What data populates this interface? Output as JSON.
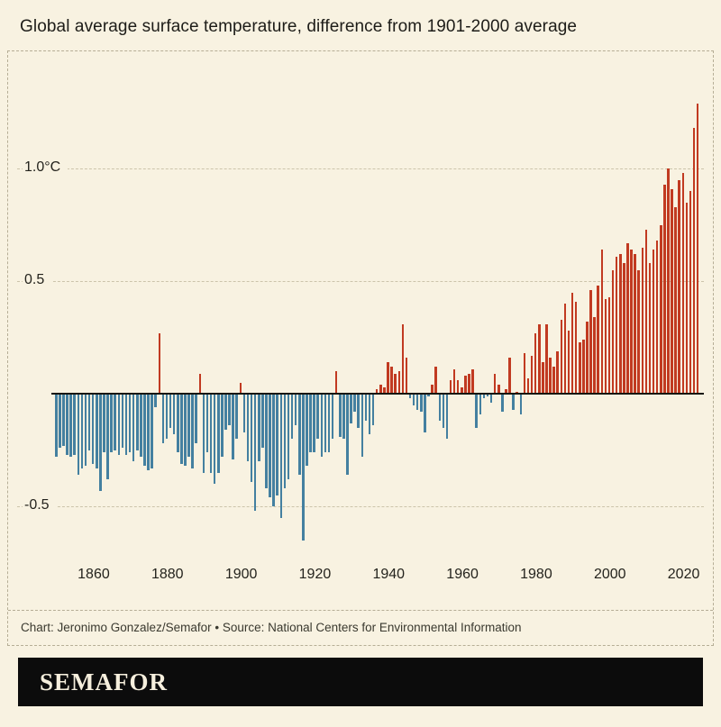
{
  "title": "Global average surface temperature, difference from 1901-2000 average",
  "credit": "Chart: Jeronimo Gonzalez/Semafor • Source: National Centers for Environmental Information",
  "brand": {
    "wordmark": "SEMAFOR"
  },
  "colors": {
    "background": "#f8f2e1",
    "positive_bar": "#c13a21",
    "negative_bar": "#4480a0",
    "gridline": "#ccc4ab",
    "frame_dash": "#b6ae96",
    "axis": "#17160f",
    "footer_bg": "#0c0c0c"
  },
  "chart_data": {
    "type": "bar",
    "title": "Global average surface temperature, difference from 1901-2000 average",
    "unit": "°C",
    "baseline_period": "1901-2000",
    "start_year": 1850,
    "end_year": 2024,
    "ylim": [
      -0.75,
      1.45
    ],
    "grid": "dashed horizontal",
    "x_ticks": [
      1860,
      1880,
      1900,
      1920,
      1940,
      1960,
      1980,
      2000,
      2020
    ],
    "y_ticks": [
      {
        "value": 1.0,
        "label": "1.0°C"
      },
      {
        "value": 0.5,
        "label": "0.5"
      },
      {
        "value": -0.5,
        "label": "-0.5"
      }
    ],
    "values": [
      -0.28,
      -0.24,
      -0.23,
      -0.27,
      -0.28,
      -0.27,
      -0.36,
      -0.33,
      -0.32,
      -0.25,
      -0.31,
      -0.33,
      -0.43,
      -0.26,
      -0.38,
      -0.26,
      -0.25,
      -0.27,
      -0.24,
      -0.27,
      -0.26,
      -0.3,
      -0.25,
      -0.28,
      -0.32,
      -0.34,
      -0.33,
      -0.06,
      0.27,
      -0.22,
      -0.2,
      -0.15,
      -0.18,
      -0.26,
      -0.31,
      -0.32,
      -0.28,
      -0.33,
      -0.22,
      0.09,
      -0.35,
      -0.26,
      -0.35,
      -0.4,
      -0.35,
      -0.28,
      -0.16,
      -0.14,
      -0.29,
      -0.2,
      0.05,
      -0.17,
      -0.3,
      -0.39,
      -0.52,
      -0.3,
      -0.24,
      -0.42,
      -0.46,
      -0.5,
      -0.45,
      -0.55,
      -0.42,
      -0.38,
      -0.2,
      -0.14,
      -0.36,
      -0.65,
      -0.32,
      -0.26,
      -0.26,
      -0.2,
      -0.28,
      -0.26,
      -0.26,
      -0.2,
      0.1,
      -0.19,
      -0.2,
      -0.36,
      -0.13,
      -0.08,
      -0.15,
      -0.28,
      -0.12,
      -0.18,
      -0.14,
      0.02,
      0.04,
      0.03,
      0.14,
      0.12,
      0.09,
      0.1,
      0.31,
      0.16,
      -0.02,
      -0.05,
      -0.07,
      -0.08,
      -0.17,
      -0.01,
      0.04,
      0.12,
      -0.12,
      -0.15,
      -0.2,
      0.06,
      0.11,
      0.06,
      0.03,
      0.08,
      0.09,
      0.11,
      -0.15,
      -0.09,
      -0.02,
      -0.01,
      -0.04,
      0.09,
      0.04,
      -0.08,
      0.02,
      0.16,
      -0.07,
      0.01,
      -0.09,
      0.18,
      0.07,
      0.17,
      0.27,
      0.31,
      0.14,
      0.31,
      0.16,
      0.12,
      0.19,
      0.33,
      0.4,
      0.28,
      0.45,
      0.41,
      0.23,
      0.24,
      0.32,
      0.46,
      0.34,
      0.48,
      0.64,
      0.42,
      0.43,
      0.55,
      0.61,
      0.62,
      0.58,
      0.67,
      0.64,
      0.62,
      0.55,
      0.65,
      0.73,
      0.58,
      0.64,
      0.68,
      0.75,
      0.93,
      1.0,
      0.91,
      0.83,
      0.95,
      0.98,
      0.85,
      0.9,
      1.18,
      1.29
    ]
  }
}
